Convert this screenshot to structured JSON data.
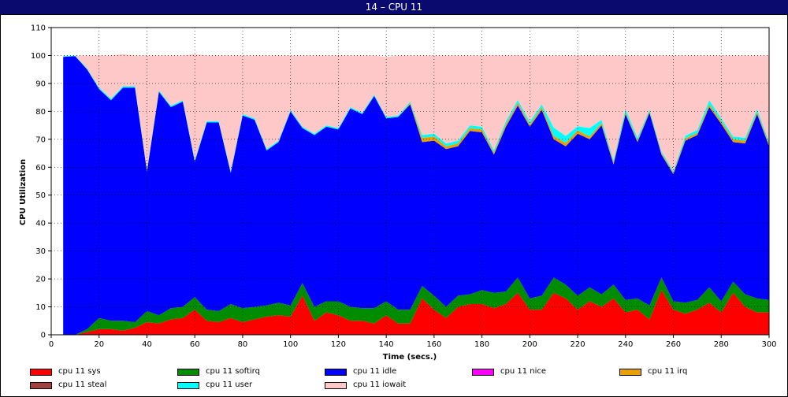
{
  "window": {
    "title": "14 – CPU 11"
  },
  "chart_data": {
    "type": "area",
    "stacked": true,
    "xlabel": "Time (secs.)",
    "ylabel": "CPU Utilization",
    "xlim": [
      0,
      300
    ],
    "ylim": [
      0,
      110
    ],
    "xticks": [
      0,
      20,
      40,
      60,
      80,
      100,
      120,
      140,
      160,
      180,
      200,
      220,
      240,
      260,
      280,
      300
    ],
    "yticks": [
      0,
      10,
      20,
      30,
      40,
      50,
      60,
      70,
      80,
      90,
      100,
      110
    ],
    "grid": true,
    "legend_position": "bottom",
    "x": [
      5,
      10,
      15,
      20,
      25,
      30,
      35,
      40,
      45,
      50,
      55,
      60,
      65,
      70,
      75,
      80,
      85,
      90,
      95,
      100,
      105,
      110,
      115,
      120,
      125,
      130,
      135,
      140,
      145,
      150,
      155,
      160,
      165,
      170,
      175,
      180,
      185,
      190,
      195,
      200,
      205,
      210,
      215,
      220,
      225,
      230,
      235,
      240,
      245,
      250,
      255,
      260,
      265,
      270,
      275,
      280,
      285,
      290,
      295,
      300
    ],
    "series": [
      {
        "name": "cpu 11 sys",
        "color": "#ff0000",
        "values": [
          0,
          0,
          1,
          2,
          2,
          1.5,
          2.5,
          4.5,
          4,
          5.5,
          6,
          9,
          5,
          4.5,
          6,
          4.5,
          5.5,
          6.5,
          7,
          6.5,
          14,
          5,
          8,
          7,
          5,
          5,
          4,
          7,
          4,
          4,
          13,
          9,
          6,
          10,
          11,
          11,
          9.5,
          11,
          15,
          9,
          9,
          15,
          13,
          9,
          12,
          10,
          13,
          8,
          9,
          5.5,
          16,
          9,
          7.5,
          9,
          11.5,
          8,
          15,
          10,
          8,
          8
        ]
      },
      {
        "name": "cpu 11 softirq",
        "color": "#008c00",
        "values": [
          0,
          0,
          1,
          4,
          3,
          3.5,
          2,
          4,
          3,
          4,
          4,
          4.5,
          4,
          4,
          5,
          5,
          4.5,
          4,
          4.5,
          4,
          4.5,
          5,
          4,
          5,
          5,
          4.5,
          5.5,
          5,
          5,
          5,
          4.5,
          5,
          4,
          4,
          3.5,
          5,
          5.5,
          4.5,
          5.5,
          4,
          5,
          5.5,
          5,
          5,
          5,
          4.5,
          5,
          4.5,
          4,
          5,
          4.5,
          3,
          4,
          3.5,
          5.5,
          4,
          4,
          4.5,
          5,
          4.5
        ]
      },
      {
        "name": "cpu 11 idle",
        "color": "#0000ff",
        "values": [
          99.5,
          99.8,
          93,
          82,
          79,
          83.5,
          84,
          50,
          80,
          72,
          73.5,
          48.5,
          67,
          67.5,
          47,
          69,
          67,
          55.5,
          57.5,
          69.5,
          55.5,
          61.5,
          62.5,
          61.5,
          71,
          69.5,
          76,
          65.5,
          69,
          73.5,
          51.5,
          55.5,
          56.5,
          53.5,
          58.5,
          56.5,
          49.5,
          59,
          61.5,
          61.5,
          66.5,
          49.5,
          49.5,
          58,
          53,
          60.5,
          43,
          66.5,
          56,
          69,
          44,
          45.5,
          58,
          59,
          64.5,
          63.5,
          50,
          54,
          66,
          55
        ]
      },
      {
        "name": "cpu 11 nice",
        "color": "#ff00ff",
        "values": [
          0,
          0,
          0,
          0,
          0,
          0,
          0,
          0,
          0,
          0,
          0,
          0,
          0,
          0,
          0,
          0,
          0,
          0,
          0,
          0,
          0,
          0,
          0,
          0,
          0,
          0,
          0,
          0,
          0,
          0,
          0,
          0,
          0,
          0,
          0,
          0,
          0,
          0,
          0.3,
          0,
          0,
          0,
          0,
          0,
          0,
          0,
          0,
          0,
          0,
          0,
          0,
          0,
          0,
          0,
          0,
          0,
          0,
          0,
          0,
          0
        ]
      },
      {
        "name": "cpu 11 irq",
        "color": "#e8a000",
        "values": [
          0,
          0,
          0,
          0,
          0,
          0,
          0,
          0,
          0,
          0,
          0,
          0,
          0,
          0,
          0,
          0,
          0,
          0,
          0,
          0,
          0,
          0,
          0,
          0,
          0,
          0,
          0,
          0,
          0,
          0.5,
          1.5,
          1.5,
          1,
          1,
          1,
          1,
          0.8,
          1,
          0.8,
          0.8,
          1,
          1.2,
          1.2,
          1.2,
          1,
          0.8,
          0.8,
          0.6,
          0.6,
          0.6,
          0.6,
          0.6,
          0.8,
          0.8,
          1,
          1,
          1,
          1,
          0.8,
          0.8
        ]
      },
      {
        "name": "cpu 11 steal",
        "color": "#a04040",
        "values": [
          0,
          0,
          0,
          0,
          0,
          0,
          0,
          0,
          0,
          0,
          0,
          0,
          0,
          0,
          0,
          0,
          0,
          0,
          0,
          0,
          0,
          0,
          0,
          0,
          0,
          0,
          0,
          0,
          0,
          0,
          0,
          0,
          0,
          0,
          0,
          0,
          0,
          0,
          0,
          0,
          0,
          0,
          0,
          0,
          0,
          0,
          0,
          0,
          0,
          0,
          0,
          0,
          0,
          0,
          0,
          0,
          0,
          0,
          0,
          0
        ]
      },
      {
        "name": "cpu 11 user",
        "color": "#00ffff",
        "values": [
          0.3,
          0.2,
          0.3,
          0.5,
          0.5,
          0.5,
          0.5,
          0.5,
          0.5,
          0.5,
          0.5,
          0.5,
          0.5,
          0.5,
          0.5,
          0.5,
          0.5,
          0.5,
          0.5,
          0.5,
          0.5,
          0.5,
          0.5,
          0.5,
          0.5,
          0.5,
          0.5,
          0.5,
          0.5,
          0.5,
          1,
          1,
          1,
          1,
          1,
          1,
          0.8,
          1,
          1,
          1,
          1,
          3,
          2.5,
          1.5,
          3,
          1.2,
          0.8,
          1.2,
          1,
          0.6,
          0.6,
          0.6,
          1,
          1,
          1.5,
          1,
          1,
          1,
          1,
          0.8
        ]
      },
      {
        "name": "cpu 11 iowait",
        "color": "#ffc8c8",
        "values": [
          0.2,
          0,
          4.7,
          11.5,
          15.5,
          11.5,
          11,
          41,
          12.5,
          18,
          16,
          38,
          23.5,
          23.5,
          41.5,
          21,
          22.5,
          33.5,
          30.5,
          19.5,
          25.5,
          28,
          25,
          26,
          18.5,
          20.5,
          14,
          21.5,
          21.5,
          16.5,
          28.5,
          28,
          31.5,
          30.5,
          25,
          25.5,
          34,
          23.5,
          16,
          23.7,
          17.5,
          25.8,
          28.8,
          25.3,
          26,
          23,
          37.4,
          19.2,
          29.4,
          19.3,
          34.3,
          41.3,
          28.7,
          26.7,
          16,
          22.5,
          29,
          29.5,
          19.2,
          30.9
        ]
      }
    ]
  }
}
